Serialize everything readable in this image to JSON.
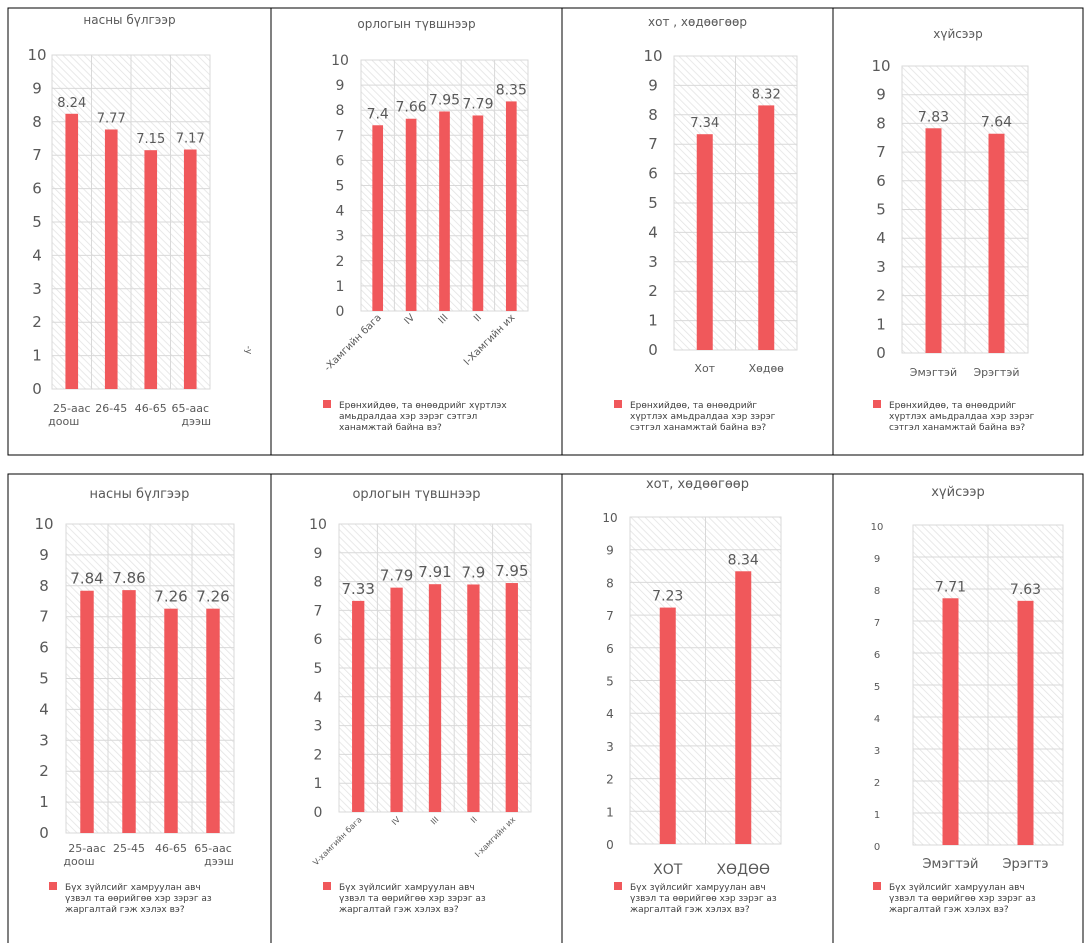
{
  "colors": {
    "bar": "#f0585b",
    "border": "#000000",
    "grid": "#d9d9d9",
    "text": "#595959"
  },
  "chart_data": [
    {
      "type": "bar",
      "title": "насны      бүлгээр",
      "categories": [
        "25-аас доош",
        "26-45",
        "46-65",
        "65-аас дээш"
      ],
      "values": [
        8.24,
        7.77,
        7.15,
        7.17
      ],
      "ylim": [
        0,
        10
      ],
      "side_label": "-у",
      "legend": ""
    },
    {
      "type": "bar",
      "title": "орлогын   түвшнээр",
      "categories": [
        "-Хамгийн бага",
        "IV",
        "III",
        "II",
        "I-Хамгийн их"
      ],
      "values": [
        7.4,
        7.66,
        7.95,
        7.79,
        8.35
      ],
      "ylim": [
        0,
        10
      ],
      "legend": "Ерөнхийдөө, та өнөөдрийг хүртлэх амьдралдаа хэр зэрэг сэтгэл ханамжтай байна вэ?"
    },
    {
      "type": "bar",
      "title": "хот , хөдөөгөөр",
      "categories": [
        "Хот",
        "Хөдөө"
      ],
      "values": [
        7.34,
        8.32
      ],
      "ylim": [
        0,
        10
      ],
      "legend": "Ерөнхийдөө, та өнөөдрийг хүртлэх амьдралдаа хэр зэрэг сэтгэл ханамжтай байна вэ?"
    },
    {
      "type": "bar",
      "title": "хүйсээр",
      "categories": [
        "Эмэгтэй",
        "Эрэгтэй"
      ],
      "values": [
        7.83,
        7.64
      ],
      "ylim": [
        0,
        10
      ],
      "legend": "Ерөнхийдөө, та өнөөдрийг хүртлэх амьдралдаа хэр зэрэг сэтгэл ханамжтай байна вэ?"
    },
    {
      "type": "bar",
      "title": "насны бүлгээр",
      "categories": [
        "25-аас доош",
        "25-45",
        "46-65",
        "65-аас дээш"
      ],
      "values": [
        7.84,
        7.86,
        7.26,
        7.26
      ],
      "ylim": [
        0,
        10
      ],
      "legend": "Бүх зүйлсийг хамруулан авч үзвэл та өөрийгөө хэр зэрэг аз жаргалтай гэж хэлэх вэ?"
    },
    {
      "type": "bar",
      "title": "орлогын түвшнээр",
      "categories": [
        "V-хамгийн бага",
        "IV",
        "III",
        "II",
        "I-хамгийн их"
      ],
      "values": [
        7.33,
        7.79,
        7.91,
        7.9,
        7.95
      ],
      "ylim": [
        0,
        10
      ],
      "legend": "Бүх зүйлсийг хамруулан авч үзвэл та өөрийгөө хэр зэрэг аз жаргалтай гэж хэлэх вэ?"
    },
    {
      "type": "bar",
      "title": "хот, хөдөөгөөр",
      "categories": [
        "ХОТ",
        "ХӨДӨӨ"
      ],
      "values": [
        7.23,
        8.34
      ],
      "ylim": [
        0,
        10
      ],
      "legend": "Бүх зүйлсийг хамруулан авч үзвэл та өөрийгөө хэр зэрэг аз жаргалтай гэж хэлэх вэ?"
    },
    {
      "type": "bar",
      "title": "хүйсээр",
      "categories": [
        "Эмэгтэй",
        "Эрэгтэ"
      ],
      "values": [
        7.71,
        7.63
      ],
      "ylim": [
        0,
        10
      ],
      "legend": "Бүх зүйлсийг хамруулан авч үзвэл та өөрийгөө хэр зэрэг аз жаргалтай гэж хэлэх вэ?"
    }
  ]
}
